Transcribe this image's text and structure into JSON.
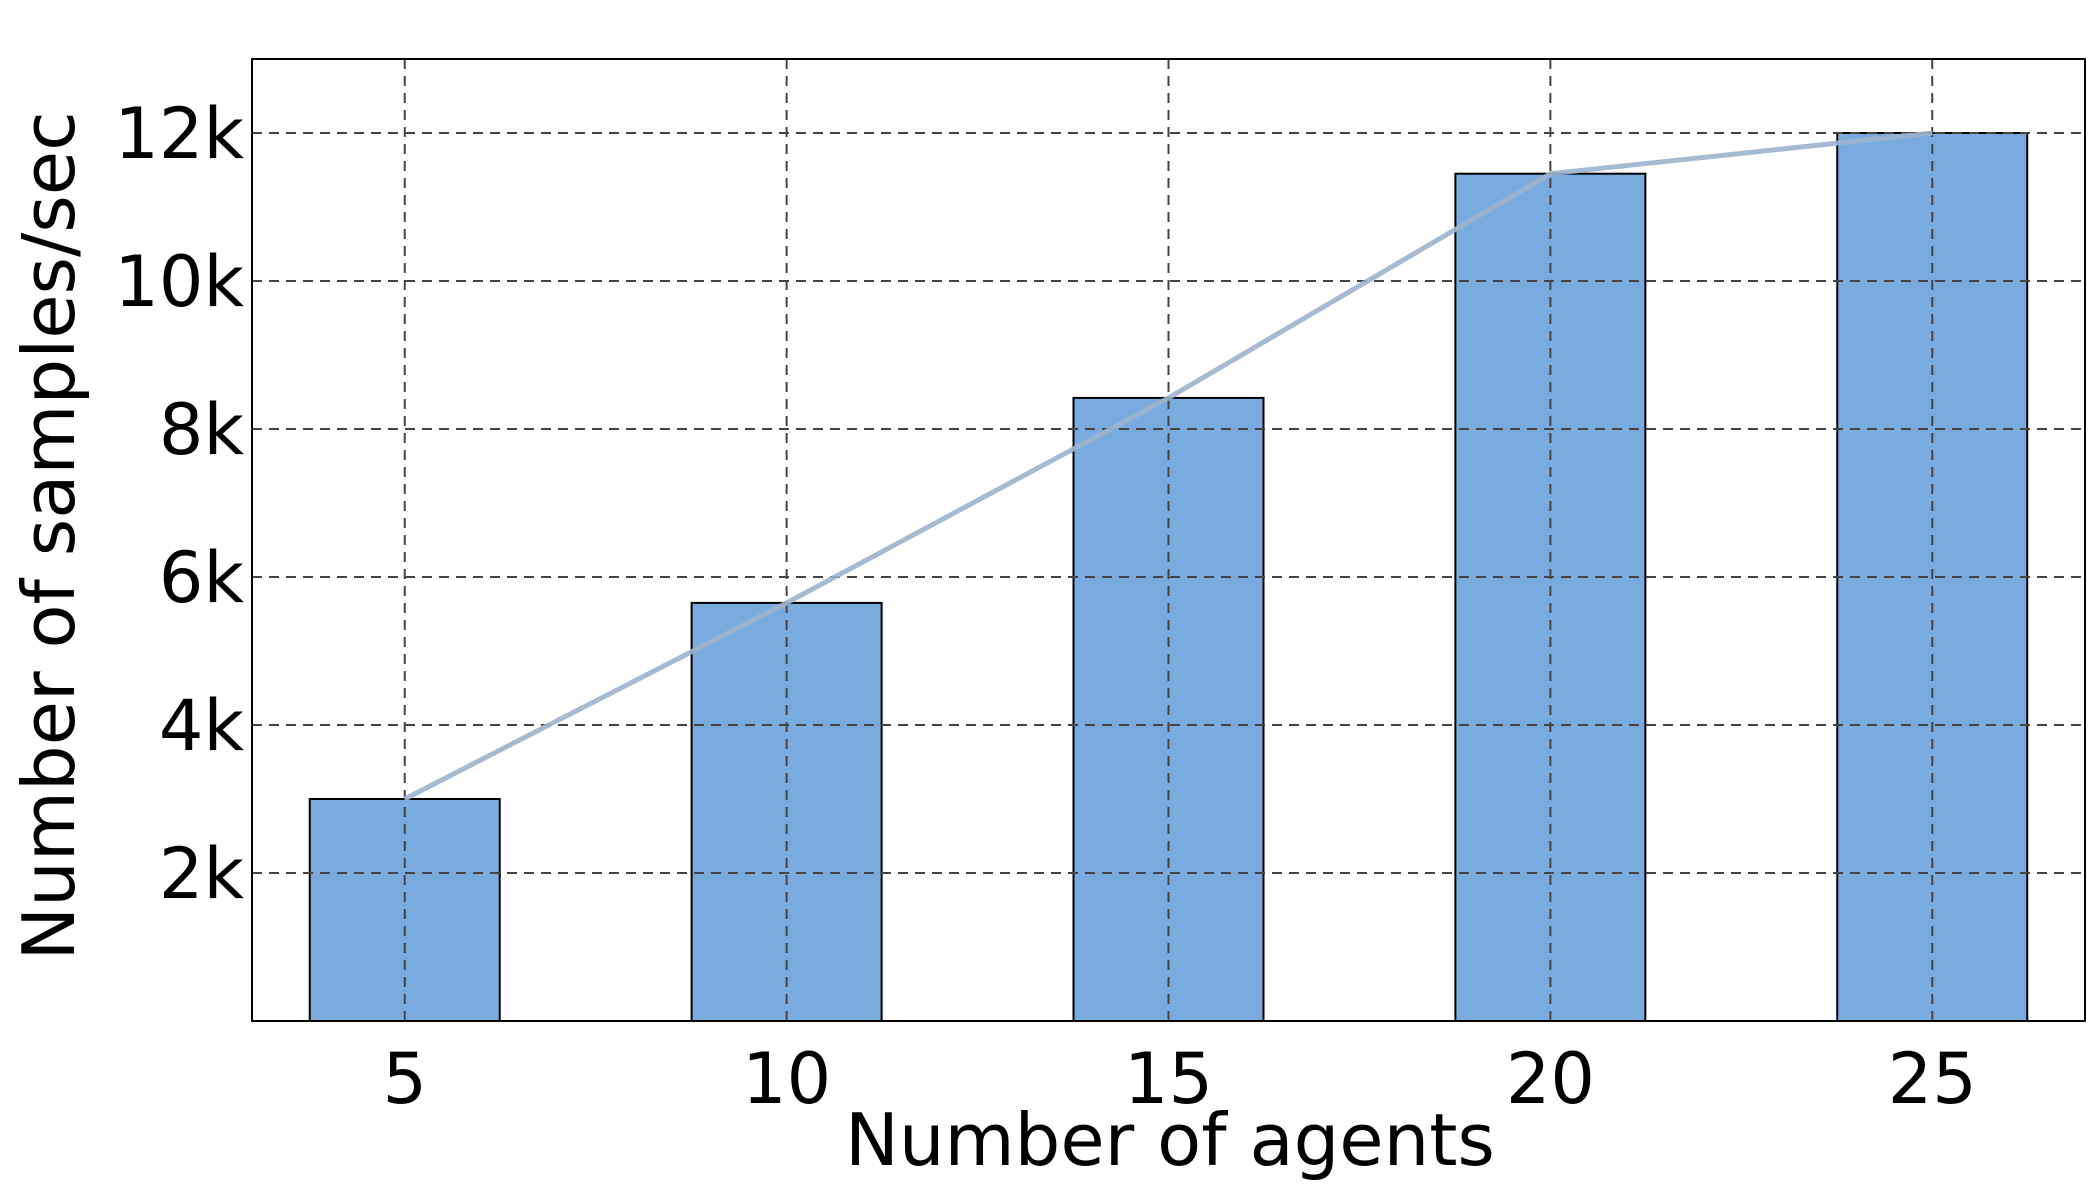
{
  "chart_data": {
    "type": "bar",
    "title": "",
    "xlabel": "Number of agents",
    "ylabel": "Number of samples/sec",
    "categories": [
      "5",
      "10",
      "15",
      "20",
      "25"
    ],
    "x": [
      5,
      10,
      15,
      20,
      25
    ],
    "values": [
      3000,
      5650,
      8420,
      11450,
      12000
    ],
    "trend_line": [
      3000,
      5650,
      8420,
      11450,
      12000
    ],
    "xlim": [
      3,
      27
    ],
    "ylim": [
      0,
      13000
    ],
    "y_ticks": [
      2000,
      4000,
      6000,
      8000,
      10000,
      12000
    ],
    "y_tick_labels": [
      "2k",
      "4k",
      "6k",
      "8k",
      "10k",
      "12k"
    ],
    "grid": true,
    "legend": "none",
    "colors": {
      "bar_fill": "#7aabdf",
      "bar_edge": "#000000",
      "trend_line": "#9cb3cc",
      "grid": "#444444"
    }
  }
}
